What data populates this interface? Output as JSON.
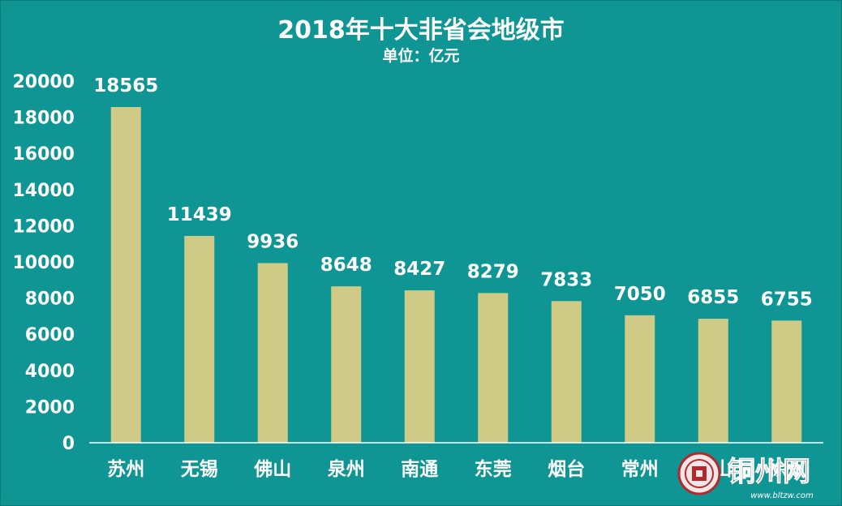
{
  "chart_data": {
    "type": "bar",
    "title": "2018年十大非省会地级市",
    "subtitle": "单位：亿元",
    "categories": [
      "苏州",
      "无锡",
      "佛山",
      "泉州",
      "南通",
      "东莞",
      "烟台",
      "常州",
      "唐山",
      "徐州"
    ],
    "values": [
      18565,
      11439,
      9936,
      8648,
      8427,
      8279,
      7833,
      7050,
      6855,
      6755
    ],
    "xlabel": "",
    "ylabel": "",
    "ylim": [
      0,
      20000
    ],
    "yticks": [
      0,
      2000,
      4000,
      6000,
      8000,
      10000,
      12000,
      14000,
      16000,
      18000,
      20000
    ],
    "grid": false,
    "legend": "none",
    "colors": {
      "background": "#0f9594",
      "bar": "#cfcb86",
      "text": "#ffffff",
      "axis": "#ffffff"
    }
  },
  "watermark": {
    "brand_text": "铜州网",
    "url_text": "www.bltzw.com"
  }
}
